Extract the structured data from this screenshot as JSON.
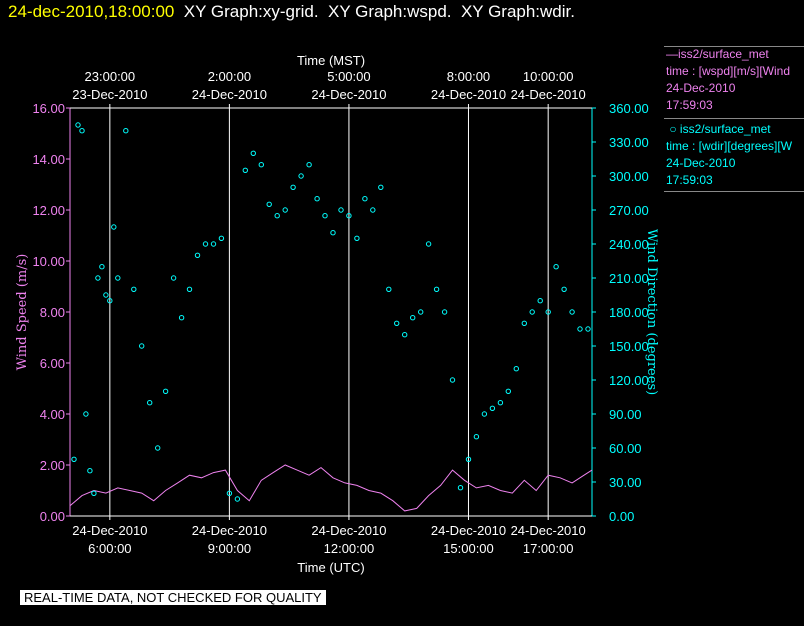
{
  "header": {
    "date": "24-dec-2010,18:00:00",
    "rest": "  XY Graph:xy-grid.  XY Graph:wspd.  XY Graph:wdir."
  },
  "legend": {
    "wspd": {
      "name": "iss2/surface_met",
      "var": "time : [wspd][m/s][Wind",
      "date": "24-Dec-2010",
      "time": "17:59:03"
    },
    "wdir": {
      "name": "iss2/surface_met",
      "var": "time : [wdir][degrees][W",
      "date": "24-Dec-2010",
      "time": "17:59:03"
    }
  },
  "footer": {
    "quality_note": "REAL-TIME DATA, NOT CHECKED FOR QUALITY"
  },
  "colors": {
    "wspd": "#ee82ee",
    "wdir": "#00ffff",
    "axis": "#ffffff"
  },
  "chart_data": {
    "type": "line",
    "xlabel_bottom": "Time (UTC)",
    "xlabel_top": "Time (MST)",
    "ylabel_left": "Wind Speed (m/s)",
    "ylabel_right": "Wind Direction (degrees)",
    "x_range_hours_utc": [
      5.0,
      18.1
    ],
    "ylim_left": [
      0,
      16
    ],
    "ylim_right": [
      0,
      360
    ],
    "grid": "vertical",
    "bottom_ticks": [
      {
        "hour": 6,
        "l1": "24-Dec-2010",
        "l2": "6:00:00"
      },
      {
        "hour": 9,
        "l1": "24-Dec-2010",
        "l2": "9:00:00"
      },
      {
        "hour": 12,
        "l1": "24-Dec-2010",
        "l2": "12:00:00"
      },
      {
        "hour": 15,
        "l1": "24-Dec-2010",
        "l2": "15:00:00"
      },
      {
        "hour": 17,
        "l1": "24-Dec-2010",
        "l2": "17:00:00"
      }
    ],
    "top_ticks": [
      {
        "hour": 6,
        "l1": "23:00:00",
        "l2": "23-Dec-2010"
      },
      {
        "hour": 9,
        "l1": "2:00:00",
        "l2": "24-Dec-2010"
      },
      {
        "hour": 12,
        "l1": "5:00:00",
        "l2": "24-Dec-2010"
      },
      {
        "hour": 15,
        "l1": "8:00:00",
        "l2": "24-Dec-2010"
      },
      {
        "hour": 17,
        "l1": "10:00:00",
        "l2": "24-Dec-2010"
      }
    ],
    "left_ticks": [
      "0.00",
      "2.00",
      "4.00",
      "6.00",
      "8.00",
      "10.00",
      "12.00",
      "14.00",
      "16.00"
    ],
    "right_ticks": [
      "0.00",
      "30.00",
      "60.00",
      "90.00",
      "120.00",
      "150.00",
      "180.00",
      "210.00",
      "240.00",
      "270.00",
      "300.00",
      "330.00",
      "360.00"
    ],
    "series": [
      {
        "name": "iss2/surface_met",
        "kind": "line",
        "axis": "left",
        "x": [
          5.0,
          5.3,
          5.6,
          5.9,
          6.2,
          6.5,
          6.8,
          7.1,
          7.4,
          7.7,
          8.0,
          8.3,
          8.6,
          8.9,
          9.2,
          9.5,
          9.8,
          10.1,
          10.4,
          10.7,
          11.0,
          11.3,
          11.6,
          11.9,
          12.2,
          12.5,
          12.8,
          13.1,
          13.4,
          13.7,
          14.0,
          14.3,
          14.6,
          14.9,
          15.2,
          15.5,
          15.8,
          16.1,
          16.4,
          16.7,
          17.0,
          17.3,
          17.6,
          17.9,
          18.1
        ],
        "y": [
          0.4,
          0.8,
          1.0,
          0.9,
          1.1,
          1.0,
          0.9,
          0.6,
          1.0,
          1.3,
          1.6,
          1.5,
          1.7,
          1.8,
          1.0,
          0.6,
          1.4,
          1.7,
          2.0,
          1.8,
          1.6,
          1.9,
          1.5,
          1.3,
          1.2,
          1.0,
          0.9,
          0.6,
          0.2,
          0.3,
          0.8,
          1.2,
          1.8,
          1.4,
          1.1,
          1.2,
          1.0,
          0.9,
          1.4,
          1.0,
          1.6,
          1.5,
          1.3,
          1.6,
          1.8
        ]
      },
      {
        "name": "iss2/surface_met",
        "kind": "scatter",
        "axis": "right",
        "x": [
          5.1,
          5.2,
          5.3,
          5.4,
          5.5,
          5.6,
          5.7,
          5.8,
          5.9,
          6.0,
          6.1,
          6.2,
          6.4,
          6.6,
          6.8,
          7.0,
          7.2,
          7.4,
          7.6,
          7.8,
          8.0,
          8.2,
          8.4,
          8.6,
          8.8,
          9.0,
          9.2,
          9.4,
          9.6,
          9.8,
          10.0,
          10.2,
          10.4,
          10.6,
          10.8,
          11.0,
          11.2,
          11.4,
          11.6,
          11.8,
          12.0,
          12.2,
          12.4,
          12.6,
          12.8,
          13.0,
          13.2,
          13.4,
          13.6,
          13.8,
          14.0,
          14.2,
          14.4,
          14.6,
          14.8,
          15.0,
          15.2,
          15.4,
          15.6,
          15.8,
          16.0,
          16.2,
          16.4,
          16.6,
          16.8,
          17.0,
          17.2,
          17.4,
          17.6,
          17.8,
          18.0
        ],
        "y": [
          50,
          345,
          340,
          90,
          40,
          20,
          210,
          220,
          195,
          190,
          255,
          210,
          340,
          200,
          150,
          100,
          60,
          110,
          210,
          175,
          200,
          230,
          240,
          240,
          245,
          20,
          15,
          305,
          320,
          310,
          275,
          265,
          270,
          290,
          300,
          310,
          280,
          265,
          250,
          270,
          265,
          245,
          280,
          270,
          290,
          200,
          170,
          160,
          175,
          180,
          240,
          200,
          180,
          120,
          25,
          50,
          70,
          90,
          95,
          100,
          110,
          130,
          170,
          180,
          190,
          180,
          220,
          200,
          180,
          165,
          165
        ]
      }
    ]
  }
}
